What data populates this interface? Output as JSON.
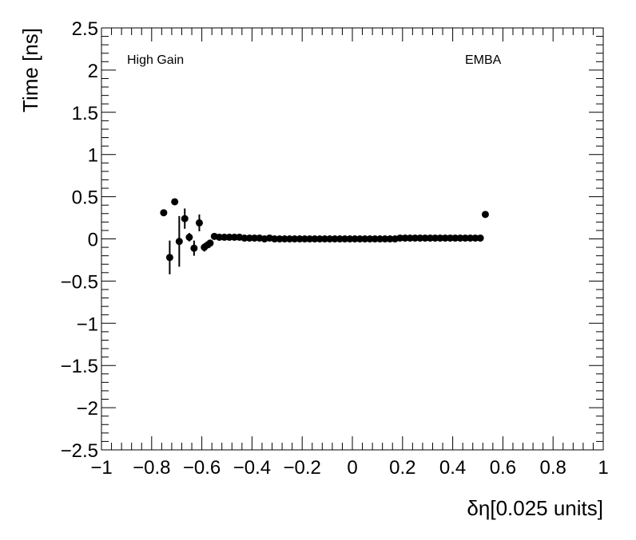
{
  "chart_data": {
    "type": "scatter",
    "title": "",
    "xlabel": "δη[0.025 units]",
    "ylabel": "Time [ns]",
    "xlim": [
      -1,
      1
    ],
    "ylim": [
      -2.5,
      2.5
    ],
    "grid": false,
    "x_ticks": [
      "−1",
      "−0.8",
      "−0.6",
      "−0.4",
      "−0.2",
      "0",
      "0.2",
      "0.4",
      "0.6",
      "0.8",
      "1"
    ],
    "y_ticks": [
      "−2.5",
      "−2",
      "−1.5",
      "−1",
      "−0.5",
      "0",
      "0.5",
      "1",
      "1.5",
      "2",
      "2.5"
    ],
    "annotations": {
      "left": "High Gain",
      "right": "EMBA"
    },
    "marker_color": "#000000",
    "points": [
      {
        "x": -0.752,
        "y": 0.31,
        "err": 0.0
      },
      {
        "x": -0.728,
        "y": -0.22,
        "err": 0.2
      },
      {
        "x": -0.708,
        "y": 0.44,
        "err": 0.0
      },
      {
        "x": -0.69,
        "y": -0.03,
        "err": 0.3
      },
      {
        "x": -0.668,
        "y": 0.24,
        "err": 0.12
      },
      {
        "x": -0.65,
        "y": 0.02,
        "err": 0.05
      },
      {
        "x": -0.631,
        "y": -0.11,
        "err": 0.09
      },
      {
        "x": -0.61,
        "y": 0.19,
        "err": 0.1
      },
      {
        "x": -0.59,
        "y": -0.1,
        "err": 0.05
      },
      {
        "x": -0.576,
        "y": -0.07,
        "err": 0.03
      },
      {
        "x": -0.567,
        "y": -0.05,
        "err": 0.02
      },
      {
        "x": -0.55,
        "y": 0.03,
        "err": 0.0
      },
      {
        "x": -0.53,
        "y": 0.02
      },
      {
        "x": -0.51,
        "y": 0.02
      },
      {
        "x": -0.49,
        "y": 0.02
      },
      {
        "x": -0.47,
        "y": 0.02
      },
      {
        "x": -0.45,
        "y": 0.02
      },
      {
        "x": -0.43,
        "y": 0.01
      },
      {
        "x": -0.41,
        "y": 0.01
      },
      {
        "x": -0.39,
        "y": 0.01
      },
      {
        "x": -0.37,
        "y": 0.01
      },
      {
        "x": -0.35,
        "y": 0.0
      },
      {
        "x": -0.33,
        "y": 0.01
      },
      {
        "x": -0.31,
        "y": 0.0
      },
      {
        "x": -0.29,
        "y": 0.0
      },
      {
        "x": -0.27,
        "y": 0.0
      },
      {
        "x": -0.25,
        "y": 0.0
      },
      {
        "x": -0.23,
        "y": 0.0
      },
      {
        "x": -0.21,
        "y": 0.0
      },
      {
        "x": -0.19,
        "y": 0.0
      },
      {
        "x": -0.17,
        "y": 0.0
      },
      {
        "x": -0.15,
        "y": 0.0
      },
      {
        "x": -0.13,
        "y": 0.0
      },
      {
        "x": -0.11,
        "y": 0.0
      },
      {
        "x": -0.09,
        "y": 0.0
      },
      {
        "x": -0.07,
        "y": 0.0
      },
      {
        "x": -0.05,
        "y": 0.0
      },
      {
        "x": -0.03,
        "y": 0.0
      },
      {
        "x": -0.01,
        "y": 0.0
      },
      {
        "x": 0.01,
        "y": 0.0
      },
      {
        "x": 0.03,
        "y": 0.0
      },
      {
        "x": 0.05,
        "y": 0.0
      },
      {
        "x": 0.07,
        "y": 0.0
      },
      {
        "x": 0.09,
        "y": 0.0
      },
      {
        "x": 0.11,
        "y": 0.0
      },
      {
        "x": 0.13,
        "y": 0.0
      },
      {
        "x": 0.15,
        "y": 0.0
      },
      {
        "x": 0.17,
        "y": 0.0
      },
      {
        "x": 0.19,
        "y": 0.01
      },
      {
        "x": 0.21,
        "y": 0.01
      },
      {
        "x": 0.23,
        "y": 0.01
      },
      {
        "x": 0.25,
        "y": 0.01
      },
      {
        "x": 0.27,
        "y": 0.01
      },
      {
        "x": 0.29,
        "y": 0.01
      },
      {
        "x": 0.31,
        "y": 0.01
      },
      {
        "x": 0.33,
        "y": 0.01
      },
      {
        "x": 0.35,
        "y": 0.01
      },
      {
        "x": 0.37,
        "y": 0.01
      },
      {
        "x": 0.39,
        "y": 0.01
      },
      {
        "x": 0.41,
        "y": 0.01
      },
      {
        "x": 0.43,
        "y": 0.01
      },
      {
        "x": 0.45,
        "y": 0.01
      },
      {
        "x": 0.47,
        "y": 0.01
      },
      {
        "x": 0.49,
        "y": 0.01
      },
      {
        "x": 0.51,
        "y": 0.01
      },
      {
        "x": 0.53,
        "y": 0.29,
        "err": 0.0
      }
    ]
  }
}
